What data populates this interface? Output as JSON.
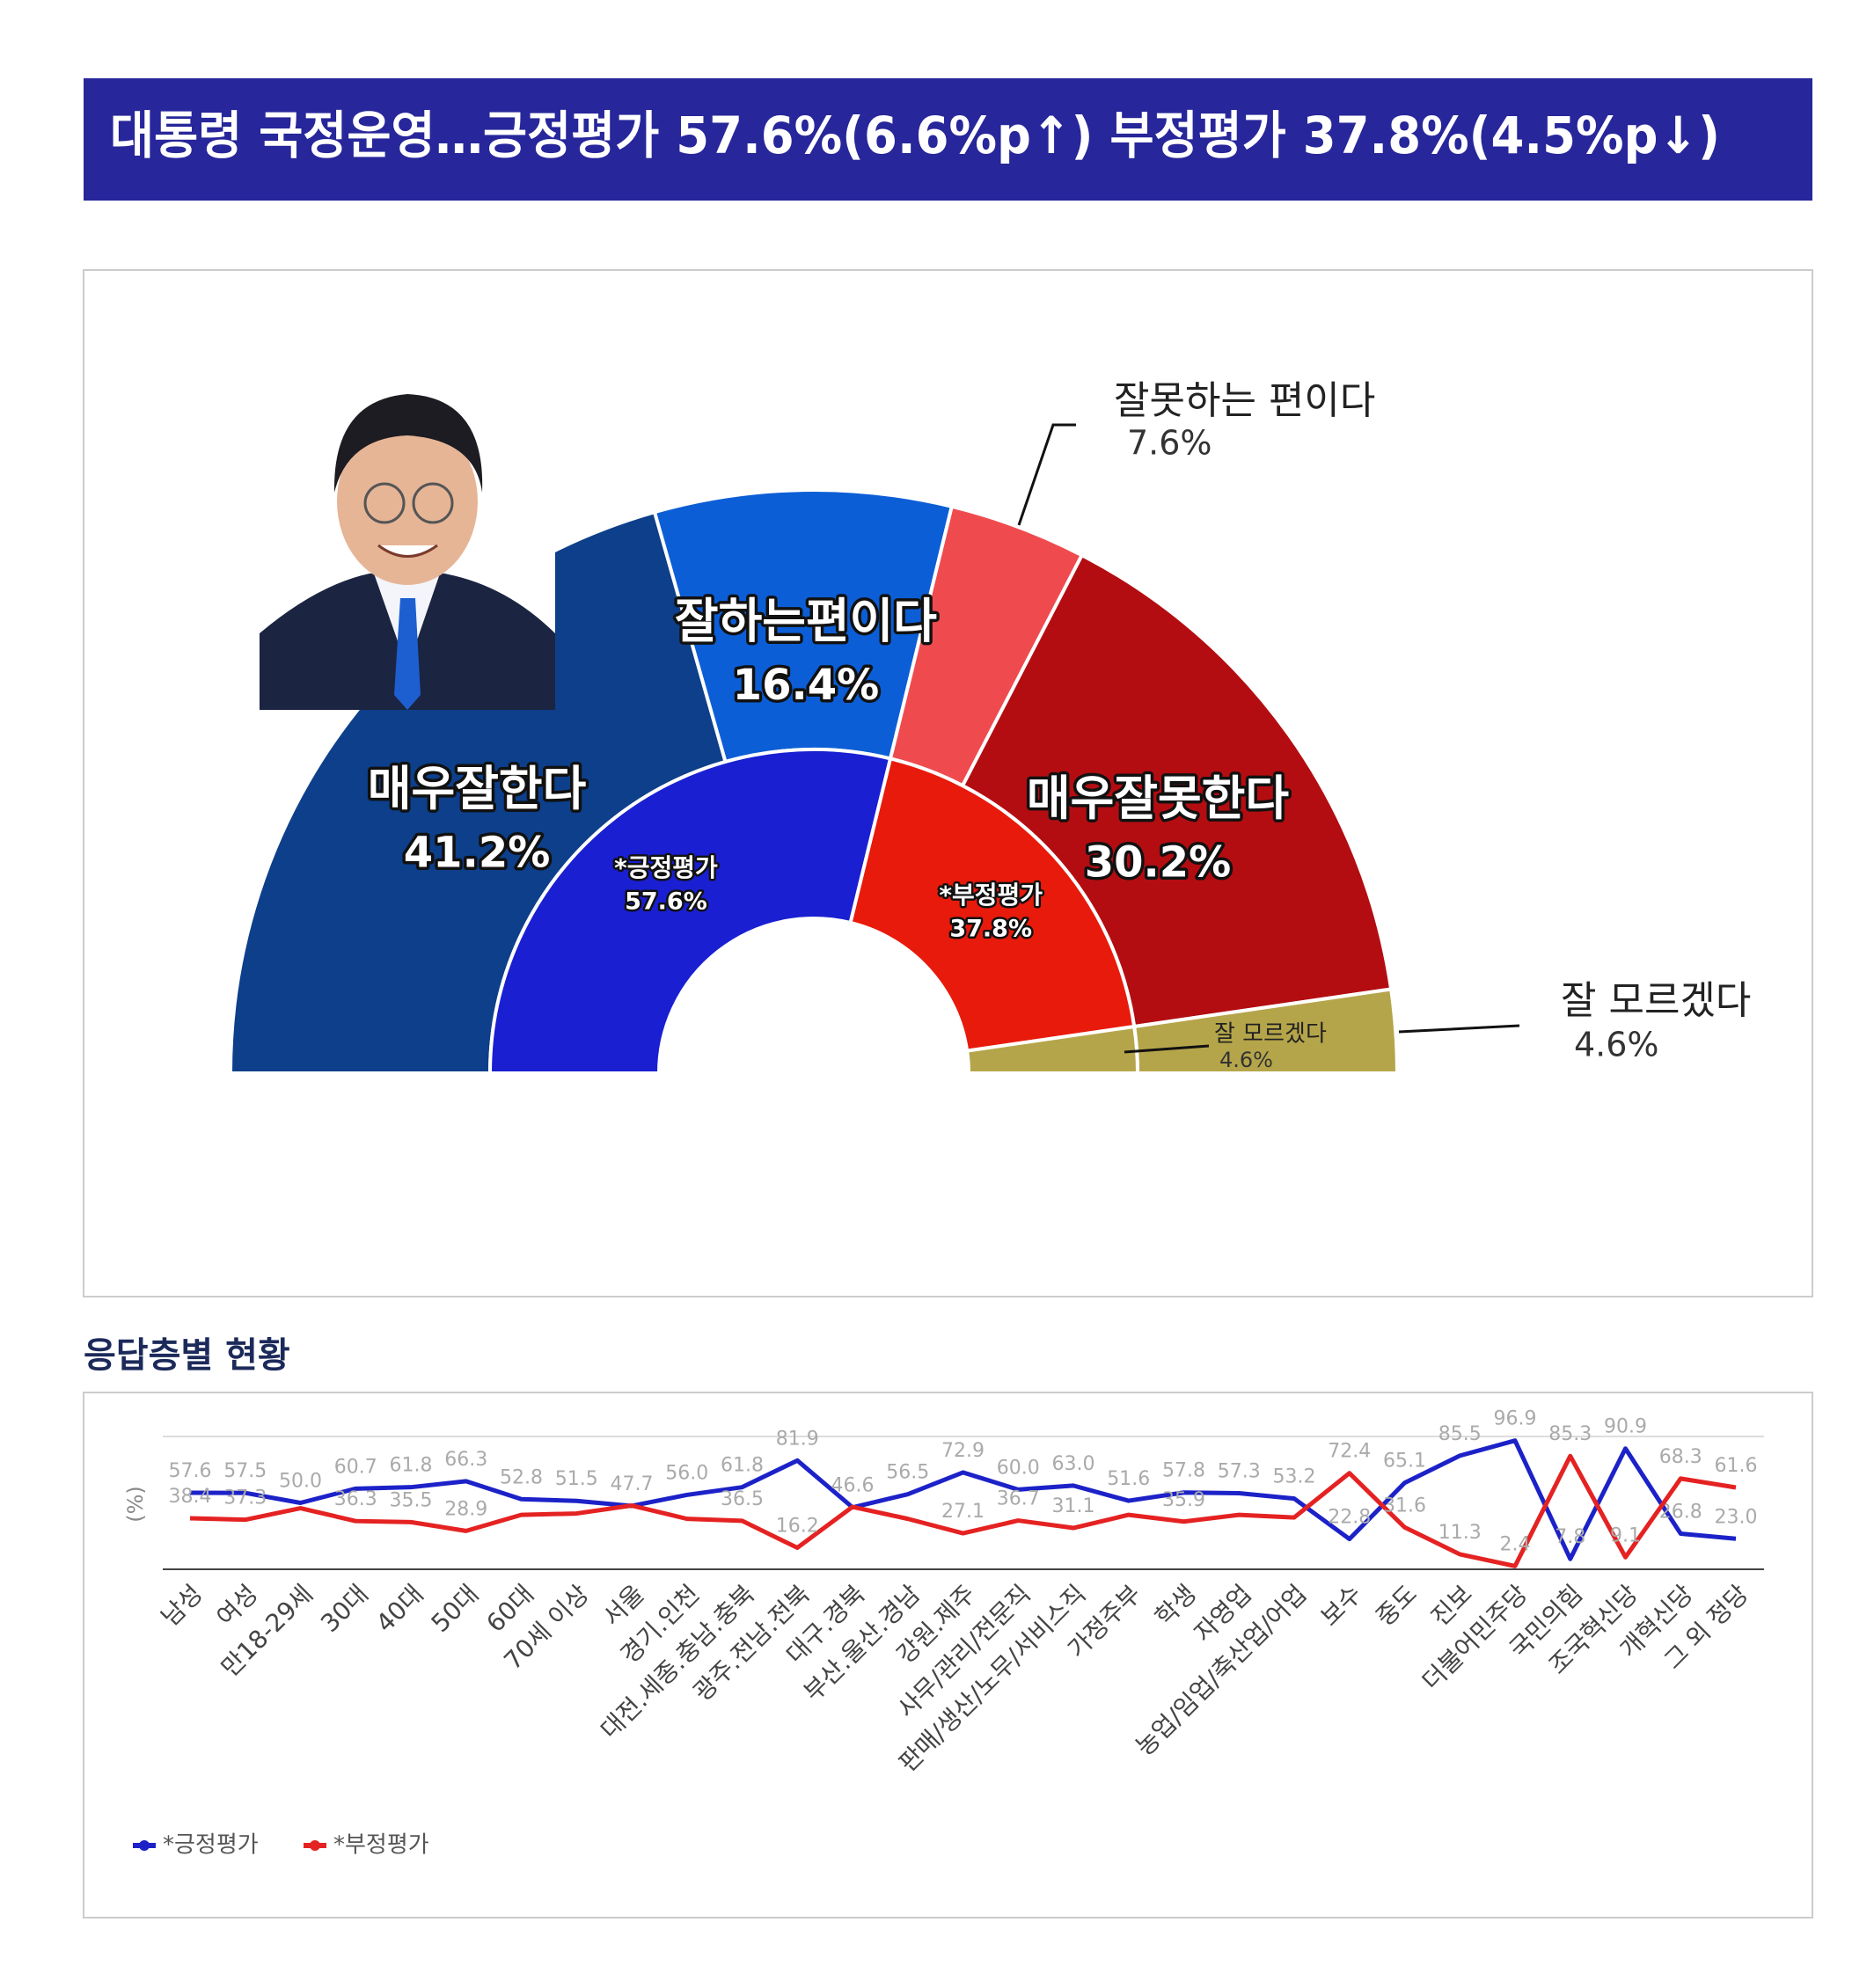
{
  "header": {
    "title": "대통령 국정운영…긍정평가 57.6%(6.6%p↑) 부정평가 37.8%(4.5%p↓)"
  },
  "chart_data": [
    {
      "type": "pie",
      "categories": [
        "매우잘한다",
        "잘하는편이다",
        "잘못하는 편이다",
        "매우잘못한다",
        "잘 모르겠다"
      ],
      "values": [
        41.2,
        16.4,
        7.6,
        30.2,
        4.6
      ],
      "value_labels": [
        "41.2%",
        "16.4%",
        "7.6%",
        "30.2%",
        "4.6%"
      ],
      "colors": [
        "#0d3f8a",
        "#0c5ed6",
        "#ef4b4f",
        "#b30d12",
        "#b5a54a"
      ],
      "inner": {
        "categories": [
          "*긍정평가",
          "*부정평가",
          "잘 모르겠다"
        ],
        "values": [
          57.6,
          37.8,
          4.6
        ],
        "value_labels": [
          "57.6%",
          "37.8%",
          "4.6%"
        ],
        "colors": [
          "#1a1fd2",
          "#e81a0b",
          "#b5a54a"
        ]
      }
    },
    {
      "type": "line",
      "title": "응답층별 현황",
      "ylabel": "(%)",
      "categories": [
        "남성",
        "여성",
        "만18-29세",
        "30대",
        "40대",
        "50대",
        "60대",
        "70세 이상",
        "서울",
        "경기.인천",
        "대전.세종.충남.충북",
        "광주.전남.전북",
        "대구.경북",
        "부산.울산.경남",
        "강원.제주",
        "사무/관리/전문직",
        "판매/생산/노무/서비스직",
        "가정주부",
        "학생",
        "자영업",
        "농업/임업/축산업/어업",
        "보수",
        "중도",
        "진보",
        "더불어민주당",
        "국민의힘",
        "조국혁신당",
        "개혁신당",
        "그 외 정당"
      ],
      "ylim": [
        0,
        100
      ],
      "legend": "bottom-left",
      "series": [
        {
          "name": "*긍정평가",
          "color": "#1c22c8",
          "values": [
            57.6,
            57.5,
            50.0,
            60.7,
            61.8,
            66.3,
            52.8,
            51.5,
            47.7,
            56.0,
            61.8,
            81.9,
            46.6,
            56.5,
            72.9,
            60.0,
            63.0,
            51.6,
            57.8,
            57.3,
            53.2,
            22.8,
            65.1,
            85.5,
            96.9,
            7.8,
            90.9,
            26.8,
            23.0
          ],
          "value_labels": [
            "57.6",
            "57.5",
            "50.0",
            "60.7",
            "61.8",
            "66.3",
            "52.8",
            "51.5",
            "47.7",
            "56.0",
            "61.8",
            "81.9",
            "46.6",
            "56.5",
            "72.9",
            "60.0",
            "63.0",
            "51.6",
            "57.8",
            "57.3",
            "53.2",
            "22.8",
            "65.1",
            "85.5",
            "96.9",
            "7.8",
            "90.9",
            "26.8",
            "23.0"
          ]
        },
        {
          "name": "*부정평가",
          "color": "#e52222",
          "values": [
            38.4,
            37.3,
            46,
            36.3,
            35.5,
            28.9,
            41,
            42,
            48,
            38,
            36.5,
            16.2,
            47,
            38,
            27.1,
            36.7,
            31.1,
            41,
            35.9,
            41,
            39,
            72.4,
            31.6,
            11.3,
            2.4,
            85.3,
            9.1,
            68.3,
            61.6
          ],
          "value_labels": [
            "38.4",
            "37.3",
            null,
            "36.3",
            "35.5",
            "28.9",
            null,
            null,
            null,
            null,
            "36.5",
            "16.2",
            null,
            null,
            "27.1",
            "36.7",
            "31.1",
            null,
            "35.9",
            null,
            null,
            "72.4",
            "31.6",
            "11.3",
            "2.4",
            "85.3",
            "9.1",
            "68.3",
            "61.6"
          ]
        }
      ]
    }
  ]
}
